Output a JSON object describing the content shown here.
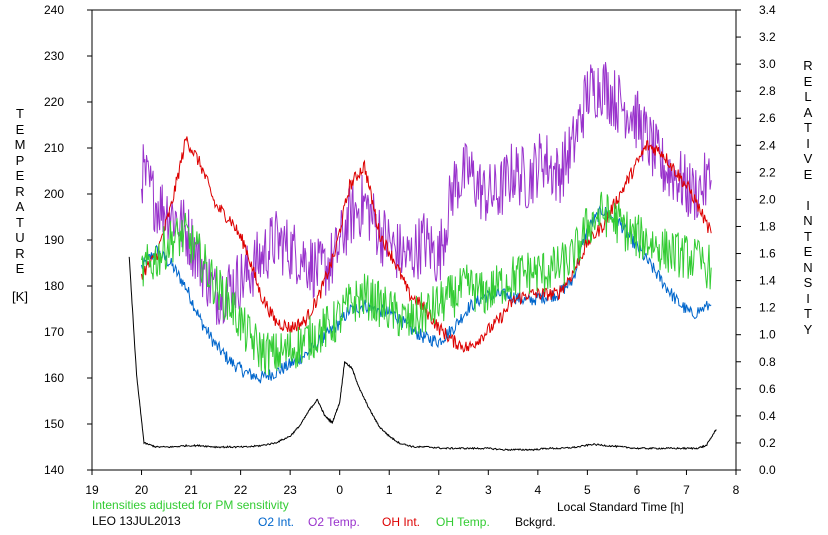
{
  "chart_data": {
    "type": "line",
    "xlabel": "Local Standard Time [h]",
    "ylabel_left": "TEMPERATURE [K]",
    "ylabel_right": "RELATIVE INTENSITY",
    "x_ticks": [
      "19",
      "20",
      "21",
      "22",
      "23",
      "0",
      "1",
      "2",
      "3",
      "4",
      "5",
      "6",
      "7",
      "8"
    ],
    "x_range_hours_from_19": [
      0,
      13
    ],
    "y_left_range": [
      140,
      240
    ],
    "y_left_ticks": [
      "140",
      "150",
      "160",
      "170",
      "180",
      "190",
      "200",
      "210",
      "220",
      "230",
      "240"
    ],
    "y_right_range": [
      0.0,
      3.4
    ],
    "y_right_ticks": [
      "0.0",
      "0.2",
      "0.4",
      "0.6",
      "0.8",
      "1.0",
      "1.2",
      "1.4",
      "1.6",
      "1.8",
      "2.0",
      "2.2",
      "2.4",
      "2.6",
      "2.8",
      "3.0",
      "3.2",
      "3.4"
    ],
    "note": "Intensities adjusted for PM sensitivity",
    "station_date": "LEO 13JUL2013",
    "series": [
      {
        "name": "O2 Int.",
        "color": "#0066cc",
        "axis": "right",
        "x": [
          20.0,
          20.3,
          20.6,
          20.9,
          21.2,
          21.5,
          21.8,
          22.1,
          22.4,
          22.7,
          23.0,
          23.3,
          23.6,
          23.9,
          24.2,
          24.5,
          24.8,
          25.1,
          25.4,
          25.7,
          26.0,
          26.3,
          26.6,
          26.9,
          27.2,
          27.5,
          27.8,
          28.1,
          28.4,
          28.7,
          29.0,
          29.3,
          29.6,
          29.9,
          30.2,
          30.5,
          30.8,
          31.1,
          31.5
        ],
        "y": [
          1.5,
          1.62,
          1.52,
          1.35,
          1.1,
          0.92,
          0.8,
          0.72,
          0.68,
          0.72,
          0.78,
          0.85,
          0.95,
          1.05,
          1.18,
          1.22,
          1.18,
          1.15,
          1.05,
          0.98,
          0.95,
          1.05,
          1.2,
          1.28,
          1.3,
          1.28,
          1.25,
          1.28,
          1.3,
          1.4,
          1.78,
          1.92,
          1.85,
          1.7,
          1.55,
          1.4,
          1.25,
          1.15,
          1.22
        ]
      },
      {
        "name": "O2 Temp.",
        "color": "#9933cc",
        "axis": "left",
        "x": [
          20.0,
          20.3,
          20.6,
          20.9,
          21.2,
          21.5,
          21.8,
          22.1,
          22.4,
          22.7,
          23.0,
          23.3,
          23.6,
          23.9,
          24.2,
          24.5,
          24.8,
          25.1,
          25.4,
          25.7,
          26.0,
          26.3,
          26.6,
          26.9,
          27.2,
          27.5,
          27.8,
          28.1,
          28.4,
          28.7,
          29.0,
          29.3,
          29.6,
          29.9,
          30.2,
          30.5,
          30.8,
          31.1,
          31.5
        ],
        "y": [
          205,
          198,
          196,
          192,
          185,
          178,
          180,
          182,
          186,
          190,
          188,
          186,
          183,
          186,
          195,
          198,
          192,
          188,
          186,
          190,
          186,
          202,
          205,
          200,
          200,
          205,
          203,
          208,
          204,
          210,
          222,
          224,
          220,
          218,
          212,
          206,
          204,
          200,
          203
        ]
      },
      {
        "name": "OH Int.",
        "color": "#dd0000",
        "axis": "right",
        "x": [
          20.0,
          20.3,
          20.6,
          20.9,
          21.2,
          21.5,
          21.8,
          22.1,
          22.4,
          22.7,
          23.0,
          23.3,
          23.6,
          23.9,
          24.2,
          24.5,
          24.8,
          25.1,
          25.4,
          25.7,
          26.0,
          26.3,
          26.6,
          26.9,
          27.2,
          27.5,
          27.8,
          28.1,
          28.4,
          28.7,
          29.0,
          29.3,
          29.6,
          29.9,
          30.2,
          30.5,
          30.8,
          31.1,
          31.5
        ],
        "y": [
          1.45,
          1.58,
          1.95,
          2.45,
          2.25,
          1.95,
          1.85,
          1.65,
          1.3,
          1.1,
          1.05,
          1.1,
          1.3,
          1.6,
          2.1,
          2.25,
          1.75,
          1.55,
          1.3,
          1.2,
          1.05,
          0.95,
          0.9,
          1.0,
          1.1,
          1.25,
          1.3,
          1.3,
          1.3,
          1.45,
          1.68,
          1.8,
          2.0,
          2.2,
          2.4,
          2.35,
          2.2,
          2.05,
          1.75
        ]
      },
      {
        "name": "OH Temp.",
        "color": "#33cc33",
        "axis": "left",
        "x": [
          20.0,
          20.3,
          20.6,
          20.9,
          21.2,
          21.5,
          21.8,
          22.1,
          22.4,
          22.7,
          23.0,
          23.3,
          23.6,
          23.9,
          24.2,
          24.5,
          24.8,
          25.1,
          25.4,
          25.7,
          26.0,
          26.3,
          26.6,
          26.9,
          27.2,
          27.5,
          27.8,
          28.1,
          28.4,
          28.7,
          29.0,
          29.3,
          29.6,
          29.9,
          30.2,
          30.5,
          30.8,
          31.1,
          31.5
        ],
        "y": [
          183,
          186,
          190,
          191,
          186,
          180,
          176,
          170,
          166,
          165,
          166,
          168,
          170,
          172,
          176,
          178,
          176,
          174,
          172,
          174,
          176,
          178,
          180,
          178,
          180,
          182,
          183,
          183,
          184,
          186,
          193,
          196,
          194,
          191,
          190,
          188,
          187,
          186,
          184
        ]
      },
      {
        "name": "Bckgrd.",
        "color": "#000000",
        "axis": "right",
        "x": [
          19.75,
          19.9,
          20.05,
          20.3,
          20.6,
          20.9,
          21.2,
          21.5,
          21.8,
          22.1,
          22.4,
          22.7,
          23.0,
          23.2,
          23.4,
          23.55,
          23.7,
          23.85,
          24.0,
          24.1,
          24.25,
          24.4,
          24.6,
          24.8,
          25.0,
          25.2,
          25.5,
          25.8,
          26.1,
          26.4,
          26.7,
          27.0,
          27.3,
          27.6,
          27.9,
          28.2,
          28.5,
          28.8,
          29.1,
          29.4,
          29.7,
          30.0,
          30.3,
          30.6,
          30.9,
          31.2,
          31.4,
          31.6
        ],
        "y": [
          1.58,
          0.7,
          0.2,
          0.17,
          0.17,
          0.18,
          0.18,
          0.17,
          0.17,
          0.17,
          0.18,
          0.2,
          0.25,
          0.33,
          0.45,
          0.52,
          0.4,
          0.35,
          0.5,
          0.8,
          0.75,
          0.6,
          0.45,
          0.32,
          0.25,
          0.2,
          0.17,
          0.17,
          0.16,
          0.16,
          0.16,
          0.16,
          0.15,
          0.15,
          0.15,
          0.16,
          0.16,
          0.17,
          0.19,
          0.18,
          0.17,
          0.16,
          0.16,
          0.16,
          0.16,
          0.16,
          0.18,
          0.3
        ]
      }
    ]
  }
}
